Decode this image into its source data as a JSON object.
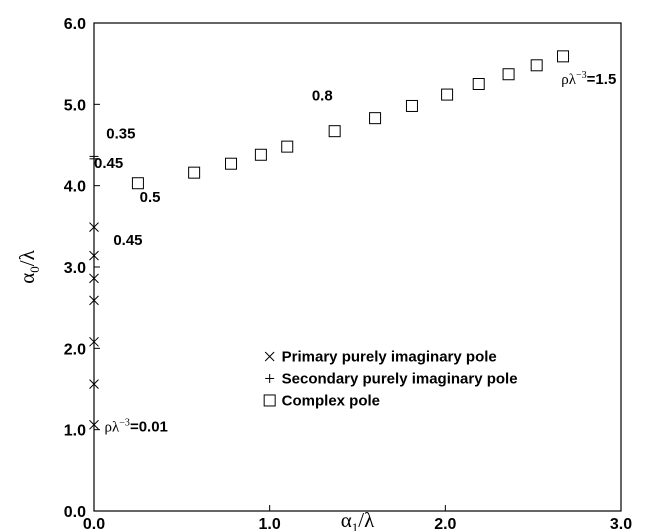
{
  "chart_data": {
    "type": "scatter",
    "xlabel": "α₁/λ",
    "xlabel_main": "α",
    "xlabel_sub": "1",
    "xlabel_tail": "/λ",
    "ylabel_main": "α",
    "ylabel_sub": "0",
    "ylabel_tail": "/λ",
    "xlim": [
      0.0,
      3.0
    ],
    "ylim": [
      0.0,
      6.0
    ],
    "xticks": [
      "0.0",
      "1.0",
      "2.0",
      "3.0"
    ],
    "yticks": [
      "0.0",
      "1.0",
      "2.0",
      "3.0",
      "4.0",
      "5.0",
      "6.0"
    ],
    "grid": false,
    "legend_position": "center-right",
    "series": [
      {
        "name": "Primary purely imaginary pole",
        "marker": "x",
        "points": [
          {
            "x": 0.0,
            "y": 1.06
          },
          {
            "x": 0.0,
            "y": 1.56
          },
          {
            "x": 0.0,
            "y": 2.08
          },
          {
            "x": 0.0,
            "y": 2.59
          },
          {
            "x": 0.0,
            "y": 2.86
          },
          {
            "x": 0.0,
            "y": 3.14
          },
          {
            "x": 0.0,
            "y": 3.49
          }
        ]
      },
      {
        "name": "Secondary purely imaginary pole",
        "marker": "+",
        "points": [
          {
            "x": 0.0,
            "y": 4.33
          },
          {
            "x": 0.0,
            "y": 4.36
          }
        ]
      },
      {
        "name": "Complex pole",
        "marker": "square",
        "points": [
          {
            "x": 0.25,
            "y": 4.03
          },
          {
            "x": 0.57,
            "y": 4.16
          },
          {
            "x": 0.78,
            "y": 4.27
          },
          {
            "x": 0.95,
            "y": 4.38
          },
          {
            "x": 1.1,
            "y": 4.48
          },
          {
            "x": 1.37,
            "y": 4.67
          },
          {
            "x": 1.6,
            "y": 4.83
          },
          {
            "x": 1.81,
            "y": 4.98
          },
          {
            "x": 2.01,
            "y": 5.12
          },
          {
            "x": 2.19,
            "y": 5.25
          },
          {
            "x": 2.36,
            "y": 5.37
          },
          {
            "x": 2.52,
            "y": 5.48
          },
          {
            "x": 2.67,
            "y": 5.59
          }
        ]
      }
    ],
    "annotations": [
      {
        "text": "0.35",
        "x": 0.07,
        "y": 4.58,
        "style": "sans"
      },
      {
        "text": "0.45",
        "x": 0.0,
        "y": 4.22,
        "style": "sans"
      },
      {
        "text": "0.5",
        "x": 0.26,
        "y": 3.8,
        "style": "sans"
      },
      {
        "text": "0.45",
        "x": 0.11,
        "y": 3.27,
        "style": "sans"
      },
      {
        "text": "0.8",
        "x": 1.24,
        "y": 5.05,
        "style": "sans"
      },
      {
        "text_main": "ρλ",
        "text_sup": "−3",
        "text_tail": "=1.5",
        "x": 2.66,
        "y": 5.25,
        "style": "serif"
      },
      {
        "text_main": "ρλ",
        "text_sup": "−3",
        "text_tail": "=0.01",
        "x": 0.06,
        "y": 0.98,
        "style": "serif"
      }
    ]
  }
}
